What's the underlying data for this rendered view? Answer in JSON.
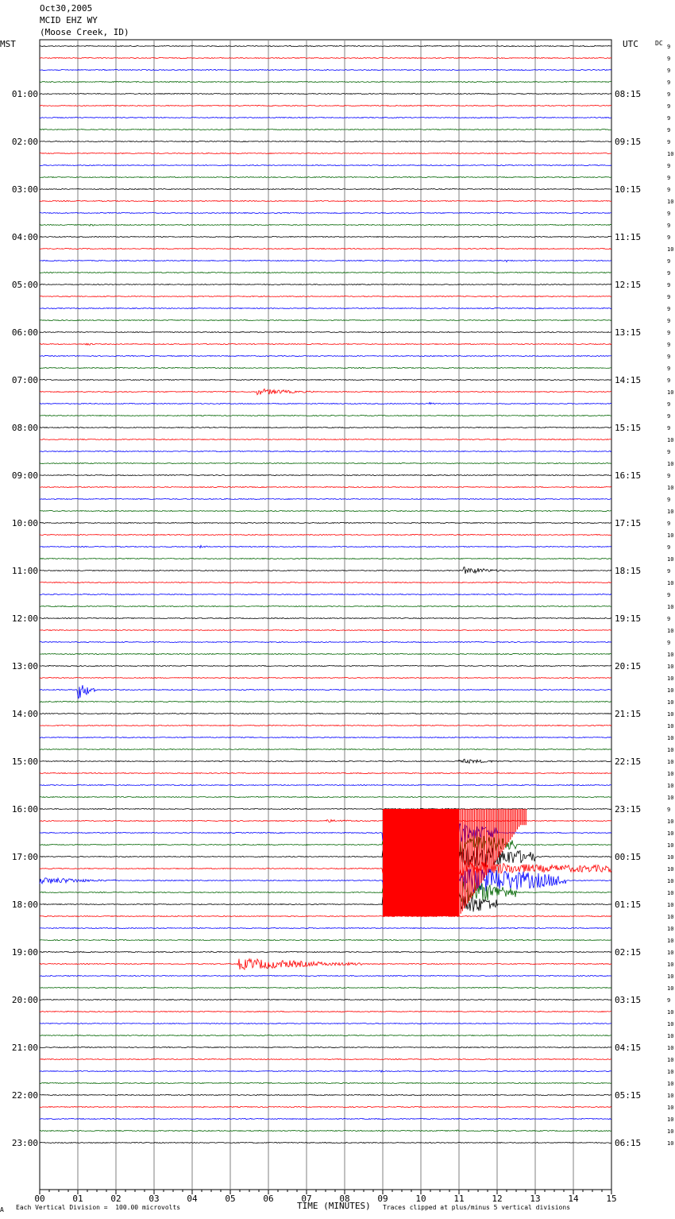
{
  "header": {
    "date": "Oct30,2005",
    "station": "MCID EHZ WY",
    "location": "(Moose Creek, ID)"
  },
  "left_zone_label": "MST",
  "right_zone_label": "UTC",
  "dc_label": "DC",
  "footer": {
    "scale_note": "Each Vertical Division =  100.00 microvolts",
    "xlabel": "TIME (MINUTES)",
    "clip_note": "Traces clipped at plus/minus 5 vertical divisions",
    "corner_mark": "A"
  },
  "colors": {
    "trace_cycle": [
      "#000000",
      "#ff0000",
      "#0000ff",
      "#006400"
    ],
    "grid": "#808080"
  },
  "chart_data": {
    "type": "line",
    "xlabel": "TIME (MINUTES)",
    "xlim": [
      0,
      15
    ],
    "x_ticks": [
      "00",
      "01",
      "02",
      "03",
      "04",
      "05",
      "06",
      "07",
      "08",
      "09",
      "10",
      "11",
      "12",
      "13",
      "14",
      "15"
    ],
    "trace_minutes": 15,
    "trace_count": 93,
    "left_hour_labels": [
      "",
      "01:00",
      "02:00",
      "03:00",
      "04:00",
      "05:00",
      "06:00",
      "07:00",
      "08:00",
      "09:00",
      "10:00",
      "11:00",
      "12:00",
      "13:00",
      "14:00",
      "15:00",
      "16:00",
      "17:00",
      "18:00",
      "19:00",
      "20:00",
      "21:00",
      "22:00",
      "23:00"
    ],
    "right_hour_labels": [
      "",
      "08:15",
      "09:15",
      "10:15",
      "11:15",
      "12:15",
      "13:15",
      "14:15",
      "15:15",
      "16:15",
      "17:15",
      "18:15",
      "19:15",
      "20:15",
      "21:15",
      "22:15",
      "23:15",
      "00:15",
      "01:15",
      "02:15",
      "03:15",
      "04:15",
      "05:15",
      "06:15"
    ],
    "dc_offsets": [
      "9",
      "9",
      "9",
      "9",
      "9",
      "9",
      "9",
      "9",
      "9",
      "10",
      "9",
      "9",
      "9",
      "10",
      "9",
      "9",
      "9",
      "10",
      "9",
      "9",
      "9",
      "9",
      "9",
      "9",
      "9",
      "9",
      "9",
      "9",
      "9",
      "10",
      "9",
      "9",
      "9",
      "10",
      "9",
      "10",
      "9",
      "10",
      "9",
      "10",
      "9",
      "10",
      "9",
      "10",
      "9",
      "10",
      "9",
      "10",
      "9",
      "10",
      "9",
      "10",
      "10",
      "10",
      "10",
      "10",
      "10",
      "10",
      "10",
      "10",
      "10",
      "10",
      "10",
      "10",
      "9",
      "10",
      "10",
      "10",
      "10",
      "10",
      "10",
      "10",
      "10",
      "10",
      "10",
      "10",
      "10",
      "10",
      "10",
      "10",
      "9",
      "10",
      "10",
      "10",
      "10",
      "10",
      "10",
      "10",
      "10",
      "10",
      "10",
      "10",
      "10"
    ],
    "events": [
      {
        "trace": 15,
        "start_min": 1.3,
        "end_min": 1.6,
        "amplitude_div": 0.6
      },
      {
        "trace": 18,
        "start_min": 12.2,
        "end_min": 12.5,
        "amplitude_div": 0.8
      },
      {
        "trace": 25,
        "start_min": 1.2,
        "end_min": 1.6,
        "amplitude_div": 0.6
      },
      {
        "trace": 29,
        "start_min": 5.7,
        "end_min": 7.2,
        "amplitude_div": 1.4
      },
      {
        "trace": 30,
        "start_min": 10.2,
        "end_min": 10.8,
        "amplitude_div": 0.6
      },
      {
        "trace": 42,
        "start_min": 4.2,
        "end_min": 4.6,
        "amplitude_div": 0.6
      },
      {
        "trace": 44,
        "start_min": 11.1,
        "end_min": 12.2,
        "amplitude_div": 1.6
      },
      {
        "trace": 54,
        "start_min": 1.0,
        "end_min": 1.5,
        "amplitude_div": 4.0
      },
      {
        "trace": 60,
        "start_min": 11.0,
        "end_min": 12.5,
        "amplitude_div": 1.0
      },
      {
        "trace": 65,
        "start_min": 7.5,
        "end_min": 9.0,
        "amplitude_div": 0.6
      },
      {
        "trace": 70,
        "start_min": 0.0,
        "end_min": 2.0,
        "amplitude_div": 1.5
      },
      {
        "trace": 76,
        "start_min": 4.5,
        "end_min": 4.8,
        "amplitude_div": 0.6
      },
      {
        "trace": 77,
        "start_min": 5.2,
        "end_min": 8.5,
        "amplitude_div": 2.5
      },
      {
        "trace": 86,
        "start_min": 8.9,
        "end_min": 9.3,
        "amplitude_div": 0.5
      },
      {
        "trace": 91,
        "start_min": 10.9,
        "end_min": 11.1,
        "amplitude_div": 0.6
      }
    ],
    "large_event": {
      "trace": 65,
      "onset_min": 9.0,
      "clip_div": 5,
      "clipped_until_trace": 72,
      "coda_traces": [
        {
          "trace": 66,
          "end_min": 12.0
        },
        {
          "trace": 67,
          "end_min": 12.5
        },
        {
          "trace": 68,
          "end_min": 13.0
        },
        {
          "trace": 69,
          "end_min": 15.0
        },
        {
          "trace": 70,
          "end_min": 13.8
        },
        {
          "trace": 71,
          "end_min": 12.5
        },
        {
          "trace": 72,
          "end_min": 12.0
        }
      ]
    }
  }
}
